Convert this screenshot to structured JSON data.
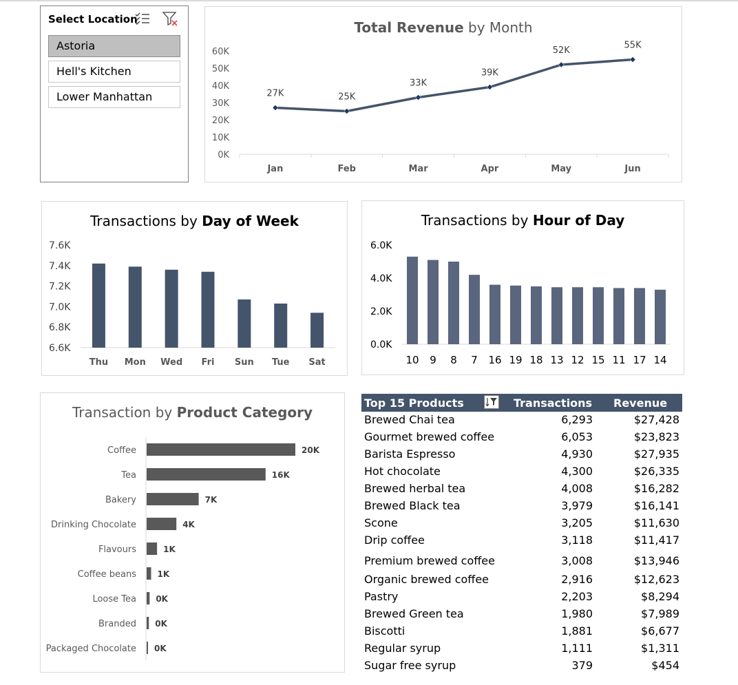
{
  "slicer": {
    "title": "Select Location",
    "icons": [
      "multi-select-icon",
      "clear-filter-icon"
    ],
    "items": [
      {
        "label": "Astoria",
        "selected": true
      },
      {
        "label": "Hell's Kitchen",
        "selected": false
      },
      {
        "label": "Lower Manhattan",
        "selected": false
      }
    ]
  },
  "revenue_chart": {
    "title_regular_1": "",
    "title_bold": "Total Revenue",
    "title_regular_2": " by Month"
  },
  "dow_chart": {
    "title_regular": "Transactions by ",
    "title_bold": "Day of Week"
  },
  "hour_chart": {
    "title_regular": "Transactions by ",
    "title_bold": "Hour of Day"
  },
  "category_chart": {
    "title_regular": "Transaction by ",
    "title_bold": "Product Category"
  },
  "table": {
    "headers": [
      "Top 15 Products",
      "Transactions",
      "Revenue"
    ],
    "sort_icon": "sort-filter-icon",
    "rows": [
      {
        "product": "Brewed Chai tea",
        "transactions": "6,293",
        "revenue": "$27,428"
      },
      {
        "product": "Gourmet brewed coffee",
        "transactions": "6,053",
        "revenue": "$23,823"
      },
      {
        "product": "Barista Espresso",
        "transactions": "4,930",
        "revenue": "$27,935"
      },
      {
        "product": "Hot chocolate",
        "transactions": "4,300",
        "revenue": "$26,335"
      },
      {
        "product": "Brewed herbal tea",
        "transactions": "4,008",
        "revenue": "$16,282"
      },
      {
        "product": "Brewed Black tea",
        "transactions": "3,979",
        "revenue": "$16,141"
      },
      {
        "product": "Scone",
        "transactions": "3,205",
        "revenue": "$11,630"
      },
      {
        "product": "Drip coffee",
        "transactions": "3,118",
        "revenue": "$11,417"
      },
      {
        "product": "Premium brewed coffee",
        "transactions": "3,008",
        "revenue": "$13,946"
      },
      {
        "product": "Organic brewed coffee",
        "transactions": "2,916",
        "revenue": "$12,623"
      },
      {
        "product": "Pastry",
        "transactions": "2,203",
        "revenue": "$8,294"
      },
      {
        "product": "Brewed Green tea",
        "transactions": "1,980",
        "revenue": "$7,989"
      },
      {
        "product": "Biscotti",
        "transactions": "1,881",
        "revenue": "$6,677"
      },
      {
        "product": "Regular syrup",
        "transactions": "1,111",
        "revenue": "$1,311"
      },
      {
        "product": "Sugar free syrup",
        "transactions": "379",
        "revenue": "$454"
      }
    ]
  },
  "colors": {
    "line": "#44546a",
    "bar_dow": "#44546a",
    "bar_hour": "#59667d",
    "bar_category": "#595959",
    "table_header": "#44546a"
  },
  "chart_data": [
    {
      "type": "line",
      "title": "Total Revenue by Month",
      "categories": [
        "Jan",
        "Feb",
        "Mar",
        "Apr",
        "May",
        "Jun"
      ],
      "values": [
        27,
        25,
        33,
        39,
        52,
        55
      ],
      "data_labels": [
        "27K",
        "25K",
        "33K",
        "39K",
        "52K",
        "55K"
      ],
      "ylim": [
        0,
        60
      ],
      "yticks": [
        "0K",
        "10K",
        "20K",
        "30K",
        "40K",
        "50K",
        "60K"
      ],
      "grid": false
    },
    {
      "type": "bar",
      "title": "Transactions by Day of Week",
      "categories": [
        "Thu",
        "Mon",
        "Wed",
        "Fri",
        "Sun",
        "Tue",
        "Sat"
      ],
      "values": [
        7.42,
        7.39,
        7.36,
        7.34,
        7.07,
        7.03,
        6.94
      ],
      "ylim": [
        6.6,
        7.6
      ],
      "yticks": [
        "6.6K",
        "6.8K",
        "7.0K",
        "7.2K",
        "7.4K",
        "7.6K"
      ],
      "grid": false
    },
    {
      "type": "bar",
      "title": "Transactions by Hour of Day",
      "categories": [
        "10",
        "9",
        "8",
        "7",
        "16",
        "19",
        "18",
        "13",
        "12",
        "15",
        "11",
        "17",
        "14"
      ],
      "values": [
        5.3,
        5.1,
        5.0,
        4.2,
        3.6,
        3.55,
        3.5,
        3.45,
        3.45,
        3.45,
        3.4,
        3.4,
        3.3
      ],
      "ylim": [
        0,
        6
      ],
      "yticks": [
        "0.0K",
        "2.0K",
        "4.0K",
        "6.0K"
      ],
      "grid": false
    },
    {
      "type": "bar",
      "orientation": "horizontal",
      "title": "Transaction by Product Category",
      "categories": [
        "Coffee",
        "Tea",
        "Bakery",
        "Drinking Chocolate",
        "Flavours",
        "Coffee beans",
        "Loose Tea",
        "Branded",
        "Packaged Chocolate"
      ],
      "values": [
        20,
        16,
        7,
        4,
        1.4,
        0.6,
        0.4,
        0.3,
        0.1
      ],
      "data_labels": [
        "20K",
        "16K",
        "7K",
        "4K",
        "1K",
        "1K",
        "0K",
        "0K",
        "0K"
      ],
      "grid": false
    }
  ]
}
